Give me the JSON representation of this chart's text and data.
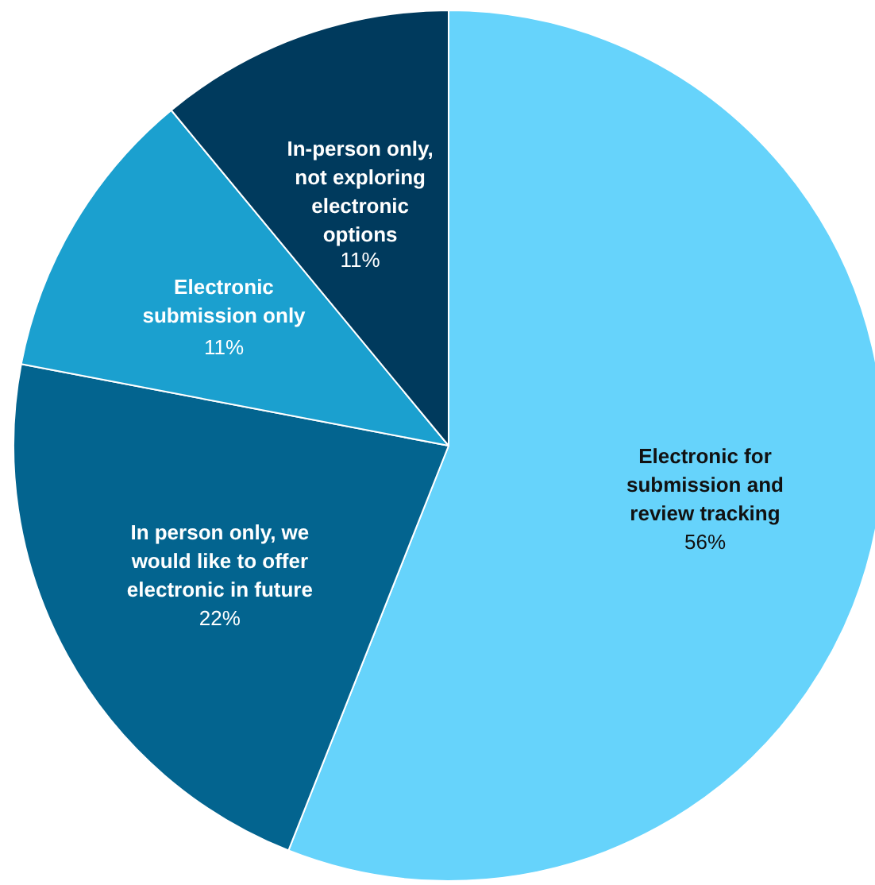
{
  "chart_data": {
    "type": "pie",
    "categories": [
      "Electronic for\nsubmission and\nreview tracking",
      "In person only, we\nwould like to offer\nelectronic in future",
      "Electronic\nsubmission only",
      "In-person only,\nnot exploring\nelectronic\noptions"
    ],
    "values": [
      56,
      22,
      11,
      11
    ],
    "colors": [
      "#66d3fb",
      "#03648f",
      "#1ba0cf",
      "#003a5d"
    ],
    "value_labels": [
      "56%",
      "22%",
      "11%",
      "11%"
    ]
  }
}
